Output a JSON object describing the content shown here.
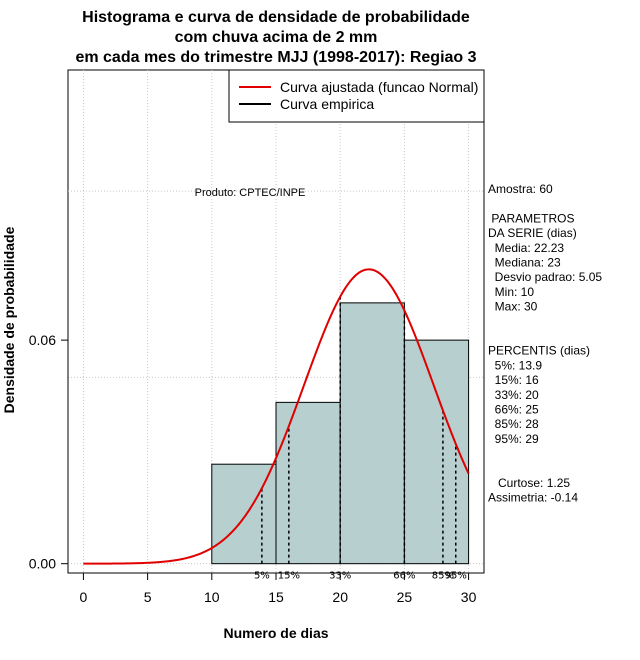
{
  "chart_data": {
    "type": "bar",
    "title_lines": [
      "Histograma e curva de densidade de probabilidade",
      "com chuva acima de 2 mm",
      "em cada mes do trimestre MJJ (1998-2017): Regiao 3"
    ],
    "xlabel": "Numero de dias",
    "ylabel": "Densidade de probabilidade",
    "xlim": [
      -1.2,
      31.2
    ],
    "ylim": [
      -0.0025,
      0.1325
    ],
    "x_ticks": [
      0,
      5,
      10,
      15,
      20,
      25,
      30
    ],
    "y_ticks": [
      0.0,
      0.06
    ],
    "y_tick_labels": [
      "0.00",
      "0.06"
    ],
    "grid_x": [
      0,
      5,
      10,
      15,
      20,
      25,
      30
    ],
    "grid_y": [
      0.0,
      0.05,
      0.1
    ],
    "bins": [
      {
        "x0": 10,
        "x1": 15,
        "density": 0.0267
      },
      {
        "x0": 15,
        "x1": 20,
        "density": 0.0433
      },
      {
        "x0": 20,
        "x1": 25,
        "density": 0.07
      },
      {
        "x0": 25,
        "x1": 30,
        "density": 0.06
      }
    ],
    "bar_color": "#b7cfcf",
    "normal_curve": {
      "mean": 22.23,
      "sd": 5.05,
      "color": "#e00000",
      "x_range": [
        0,
        30
      ]
    },
    "percentile_lines": [
      {
        "label": "5%",
        "x": 13.9
      },
      {
        "label": "15%",
        "x": 16
      },
      {
        "label": "33%",
        "x": 20
      },
      {
        "label": "66%",
        "x": 25
      },
      {
        "label": "85%",
        "x": 28
      },
      {
        "label": "95%",
        "x": 29
      }
    ],
    "legend": {
      "placement": "top-right",
      "entries": [
        {
          "label": "Curva ajustada (funcao Normal)",
          "color": "#e00000"
        },
        {
          "label": "Curva empirica",
          "color": "#000000"
        }
      ]
    },
    "annotation": "Produto: CPTEC/INPE",
    "stats_lines": [
      "Amostra: 60",
      "",
      " PARAMETROS",
      "DA SERIE (dias)",
      "  Media: 22.23",
      "  Mediana: 23",
      "  Desvio padrao: 5.05",
      "  Min: 10",
      "  Max: 30",
      "",
      "",
      "PERCENTIS (dias)",
      "  5%: 13.9",
      "  15%: 16",
      "  33%: 20",
      "  66%: 25",
      "  85%: 28",
      "  95%: 29",
      "",
      "",
      "   Curtose: 1.25",
      "Assimetria: -0.14"
    ]
  }
}
